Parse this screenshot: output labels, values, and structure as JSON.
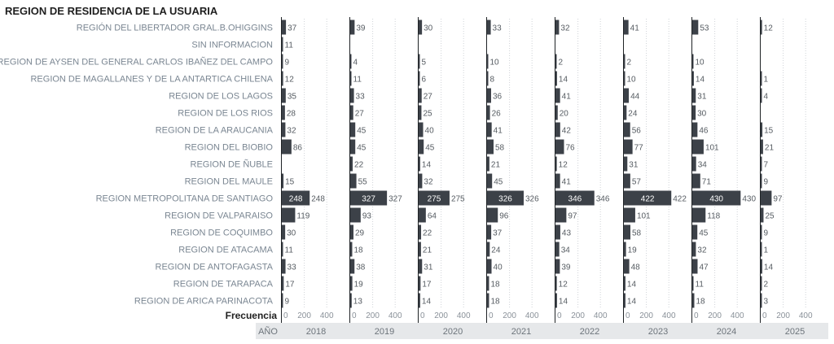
{
  "chart_data": {
    "type": "bar",
    "title": "REGION DE RESIDENCIA DE LA USUARIA",
    "orientation": "horizontal",
    "facet_label": "AÑO",
    "xlabel": "Frecuencia",
    "xlim": [
      0,
      500
    ],
    "xticks": [
      "0",
      "200",
      "400"
    ],
    "grid": true,
    "bar_color": "#3c4148",
    "categories": [
      "REGIÓN DEL LIBERTADOR GRAL.B.OHIGGINS",
      "SIN INFORMACION",
      "REGION DE AYSEN DEL GENERAL CARLOS IBAÑEZ DEL CAMPO",
      "REGION DE MAGALLANES Y DE LA ANTARTICA CHILENA",
      "REGION DE LOS LAGOS",
      "REGION DE LOS RIOS",
      "REGION DE LA ARAUCANIA",
      "REGION DEL BIOBIO",
      "REGION DE ÑUBLE",
      "REGION DEL MAULE",
      "REGION METROPOLITANA DE SANTIAGO",
      "REGION DE VALPARAISO",
      "REGION DE COQUIMBO",
      "REGION DE ATACAMA",
      "REGION DE ANTOFAGASTA",
      "REGION DE TARAPACA",
      "REGION DE ARICA PARINACOTA"
    ],
    "series": [
      {
        "name": "2018",
        "values": [
          37,
          11,
          9,
          12,
          35,
          28,
          32,
          86,
          null,
          15,
          248,
          119,
          30,
          11,
          33,
          17,
          9
        ]
      },
      {
        "name": "2019",
        "values": [
          39,
          null,
          4,
          11,
          33,
          27,
          45,
          45,
          22,
          55,
          327,
          93,
          29,
          18,
          38,
          19,
          13
        ]
      },
      {
        "name": "2020",
        "values": [
          30,
          null,
          5,
          6,
          27,
          25,
          40,
          45,
          14,
          32,
          275,
          64,
          22,
          21,
          31,
          17,
          14
        ]
      },
      {
        "name": "2021",
        "values": [
          33,
          null,
          10,
          8,
          36,
          26,
          41,
          58,
          21,
          45,
          326,
          96,
          37,
          24,
          40,
          18,
          18
        ]
      },
      {
        "name": "2022",
        "values": [
          32,
          null,
          2,
          14,
          41,
          20,
          42,
          76,
          12,
          41,
          346,
          97,
          43,
          34,
          39,
          12,
          14
        ]
      },
      {
        "name": "2023",
        "values": [
          41,
          null,
          2,
          10,
          44,
          24,
          56,
          77,
          31,
          57,
          422,
          101,
          58,
          19,
          48,
          14,
          14
        ]
      },
      {
        "name": "2024",
        "values": [
          53,
          null,
          10,
          14,
          31,
          30,
          46,
          101,
          34,
          71,
          430,
          118,
          45,
          32,
          47,
          11,
          18
        ]
      },
      {
        "name": "2025",
        "values": [
          12,
          null,
          null,
          1,
          4,
          null,
          15,
          21,
          7,
          9,
          97,
          25,
          9,
          1,
          14,
          2,
          3
        ]
      }
    ]
  }
}
